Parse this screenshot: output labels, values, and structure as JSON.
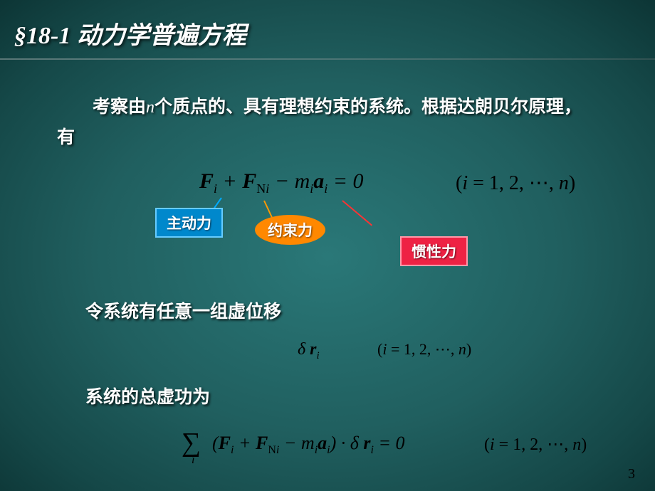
{
  "title": "§18-1  动力学普遍方程",
  "paragraph1_prefix": "　　考察由",
  "paragraph1_n": "n",
  "paragraph1_suffix": "个质点的、具有理想约束的系统。根据达朗贝尔原理，有",
  "equation1": {
    "F_i": "F",
    "plus1": " + ",
    "F_Ni": "F",
    "sub_N": "N",
    "minus": " − ",
    "m": "m",
    "a": "a",
    "eq_zero": " = 0",
    "sub_i": "i"
  },
  "equation1_index": "(i = 1, 2, ⋯, n)",
  "labels": {
    "active": "主动力",
    "constraint": "约束力",
    "inertia": "惯性力"
  },
  "paragraph2": "令系统有任意一组虚位移",
  "equation2": {
    "delta": "δ ",
    "r": "r",
    "sub_i": "i"
  },
  "equation2_index": "(i = 1, 2, ⋯, n)",
  "paragraph3": "系统的总虚功为",
  "equation3": {
    "sigma": "∑",
    "sigma_sub": "i",
    "lparen": "(",
    "F_i": "F",
    "plus": " + ",
    "F_Ni": "F",
    "sub_N": "N",
    "minus": " − ",
    "m": "m",
    "a": "a",
    "rparen": ")",
    "dot": " · ",
    "delta": "δ ",
    "r": "r",
    "eq_zero": " = 0",
    "sub_i": "i"
  },
  "equation3_index": "(i = 1, 2, ⋯, n)",
  "page_number": "3",
  "colors": {
    "active_bg": "#0088cc",
    "active_border": "#66ccff",
    "constraint_bg": "#ff8800",
    "inertia_bg": "#ee2244",
    "inertia_border": "#ff99aa",
    "text_white": "#ffffff",
    "math_black": "#000000"
  }
}
